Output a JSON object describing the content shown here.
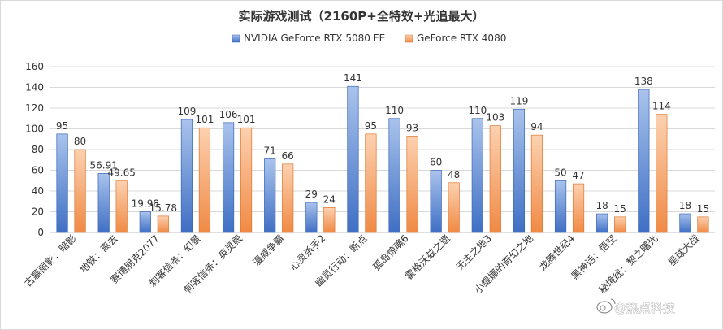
{
  "chart_data": {
    "type": "bar",
    "title": "实际游戏测试（2160P+全特效+光追最大）",
    "categories": [
      "古墓丽影：暗影",
      "地铁：离去",
      "赛博朋克2077",
      "刺客信条：幻景",
      "刺客信条：英灵殿",
      "漫威争霸",
      "心灵杀手2",
      "幽灵行动：断点",
      "孤岛惊魂6",
      "霍格沃兹之遗",
      "无主之地3",
      "小缇娜的奇幻之地",
      "龙腾世纪4",
      "黑神话：悟空",
      "秘境线：黎之曙光",
      "星球大战"
    ],
    "series": [
      {
        "name": "NVIDIA GeForce RTX 5080 FE",
        "values": [
          95,
          56.91,
          19.98,
          109,
          106,
          71,
          29,
          141,
          110,
          60,
          110,
          119,
          50,
          18,
          138,
          18
        ]
      },
      {
        "name": "GeForce RTX 4080",
        "values": [
          80,
          49.65,
          15.78,
          101,
          101,
          66,
          24,
          95,
          93,
          48,
          103,
          94,
          47,
          15,
          114,
          15
        ]
      }
    ],
    "ylim": [
      0,
      160
    ],
    "yticks": [
      0,
      20,
      40,
      60,
      80,
      100,
      120,
      140,
      160
    ],
    "grid": true,
    "legend": "top-center",
    "colors": {
      "series1_top": "#a9c3ec",
      "series1_bottom": "#3f6fc4",
      "series1_stroke": "#3a66b8",
      "series2_top": "#fcd1b0",
      "series2_bottom": "#f08a45",
      "series2_stroke": "#e0762e"
    }
  },
  "watermark": {
    "text": "@热点科技",
    "icon": "weibo-icon"
  }
}
